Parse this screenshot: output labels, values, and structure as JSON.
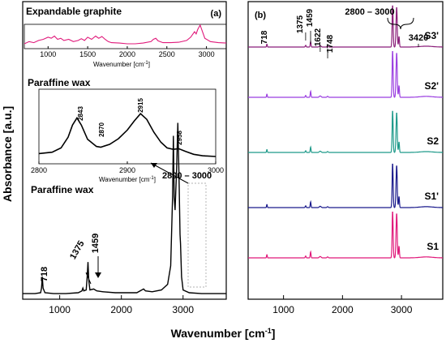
{
  "figure": {
    "ylabel": "Absorbance [a.u.]",
    "xlabel": "Wavenumber [cm",
    "xlabel_sup": "-1",
    "xlabel_close": "]"
  },
  "chart_data": [
    {
      "type": "line",
      "id": "panel-a-main",
      "panel_label": "(a)",
      "title": "Paraffine wax",
      "xlim": [
        400,
        3700
      ],
      "xticks": [
        1000,
        2000,
        3000
      ],
      "ylim": [
        0,
        1
      ],
      "grid": false,
      "series": [
        {
          "color": "#000000",
          "x": [
            400,
            600,
            690,
            705,
            718,
            730,
            760,
            900,
            1100,
            1300,
            1360,
            1375,
            1390,
            1430,
            1445,
            1459,
            1472,
            1490,
            1550,
            1600,
            1700,
            1900,
            2100,
            2250,
            2330,
            2360,
            2390,
            2500,
            2650,
            2750,
            2800,
            2830,
            2843,
            2856,
            2870,
            2895,
            2915,
            2935,
            2950,
            2958,
            2975,
            3000,
            3100,
            3300,
            3500,
            3700
          ],
          "y": [
            0.03,
            0.03,
            0.035,
            0.06,
            0.12,
            0.06,
            0.035,
            0.03,
            0.03,
            0.035,
            0.045,
            0.06,
            0.045,
            0.05,
            0.12,
            0.2,
            0.1,
            0.05,
            0.055,
            0.045,
            0.04,
            0.035,
            0.035,
            0.035,
            0.05,
            0.055,
            0.045,
            0.04,
            0.05,
            0.08,
            0.18,
            0.55,
            0.88,
            0.55,
            0.48,
            0.7,
            0.95,
            0.65,
            0.35,
            0.3,
            0.12,
            0.05,
            0.035,
            0.03,
            0.03,
            0.03
          ]
        }
      ],
      "annotations": [
        {
          "text": "718",
          "x": 718
        },
        {
          "text": "1375",
          "x": 1375
        },
        {
          "text": "1459",
          "x": 1459
        },
        {
          "text": "2800 – 3000",
          "x": 2900
        }
      ]
    },
    {
      "type": "line",
      "id": "panel-a-inset-graphite",
      "title": "Expandable graphite",
      "xlabel": "Wavenumber [cm",
      "xlabel_sup": "-1",
      "xlabel_close": "]",
      "xlim": [
        700,
        3250
      ],
      "xticks": [
        1000,
        1500,
        2000,
        2500,
        3000
      ],
      "ylim": [
        0,
        1
      ],
      "series": [
        {
          "color": "#e0197a",
          "x": [
            700,
            760,
            820,
            880,
            940,
            1000,
            1040,
            1080,
            1120,
            1160,
            1200,
            1260,
            1320,
            1380,
            1420,
            1460,
            1500,
            1550,
            1600,
            1640,
            1680,
            1720,
            1760,
            1800,
            1900,
            2000,
            2100,
            2200,
            2300,
            2330,
            2360,
            2390,
            2450,
            2550,
            2650,
            2750,
            2800,
            2830,
            2850,
            2870,
            2890,
            2920,
            2950,
            2980,
            3050,
            3150,
            3250
          ],
          "y": [
            0.15,
            0.25,
            0.2,
            0.3,
            0.35,
            0.45,
            0.4,
            0.5,
            0.35,
            0.4,
            0.3,
            0.35,
            0.25,
            0.3,
            0.38,
            0.3,
            0.45,
            0.35,
            0.5,
            0.4,
            0.48,
            0.35,
            0.25,
            0.2,
            0.18,
            0.15,
            0.15,
            0.18,
            0.25,
            0.35,
            0.4,
            0.28,
            0.2,
            0.2,
            0.22,
            0.3,
            0.45,
            0.6,
            0.7,
            0.6,
            0.8,
            1.0,
            0.7,
            0.4,
            0.25,
            0.2,
            0.18
          ]
        }
      ]
    },
    {
      "type": "line",
      "id": "panel-a-inset-wax",
      "title": "Paraffine wax",
      "xlabel": "Wavenumber [cm",
      "xlabel_sup": "-1",
      "xlabel_close": "]",
      "xlim": [
        2800,
        3000
      ],
      "xticks": [
        2800,
        2900,
        3000
      ],
      "ylim": [
        0,
        1
      ],
      "series": [
        {
          "color": "#000000",
          "x": [
            2800,
            2815,
            2825,
            2833,
            2838,
            2843,
            2848,
            2855,
            2865,
            2870,
            2880,
            2890,
            2900,
            2908,
            2915,
            2922,
            2930,
            2938,
            2945,
            2952,
            2958,
            2966,
            2975,
            2985,
            3000
          ],
          "y": [
            0.12,
            0.14,
            0.2,
            0.35,
            0.52,
            0.62,
            0.52,
            0.32,
            0.22,
            0.21,
            0.25,
            0.33,
            0.45,
            0.58,
            0.68,
            0.6,
            0.42,
            0.28,
            0.2,
            0.18,
            0.19,
            0.15,
            0.11,
            0.09,
            0.08
          ]
        }
      ],
      "annotations": [
        {
          "text": "2843",
          "x": 2843
        },
        {
          "text": "2870",
          "x": 2870
        },
        {
          "text": "2915",
          "x": 2915
        },
        {
          "text": "2958",
          "x": 2958
        }
      ]
    },
    {
      "type": "line",
      "id": "panel-b",
      "panel_label": "(b)",
      "xlim": [
        400,
        3700
      ],
      "xticks": [
        1000,
        2000,
        3000
      ],
      "grid": false,
      "series": [
        {
          "name": "S3'",
          "color": "#8b1f7a"
        },
        {
          "name": "S2'",
          "color": "#9b3fe0"
        },
        {
          "name": "S2",
          "color": "#1f9a8a"
        },
        {
          "name": "S1'",
          "color": "#1a1a8c"
        },
        {
          "name": "S1",
          "color": "#e0197a"
        }
      ],
      "annotations": [
        {
          "text": "718",
          "x": 718
        },
        {
          "text": "1375",
          "x": 1375
        },
        {
          "text": "1459",
          "x": 1459
        },
        {
          "text": "1622",
          "x": 1622
        },
        {
          "text": "1748",
          "x": 1748
        },
        {
          "text": "2800 – 3000",
          "x": 2900
        },
        {
          "text": "3420",
          "x": 3420
        }
      ]
    }
  ]
}
